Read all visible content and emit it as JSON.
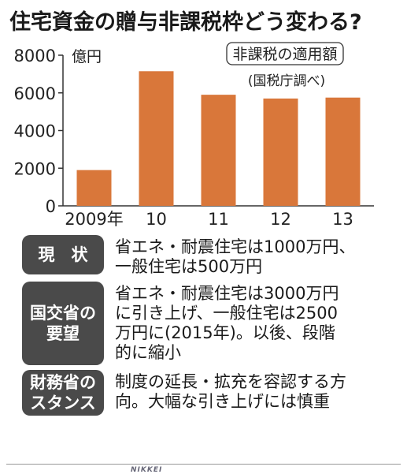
{
  "title": "住宅資金の贈与非課税枠どう変わる?",
  "chart_data": {
    "type": "bar",
    "categories": [
      "2009年",
      "10",
      "11",
      "12",
      "13"
    ],
    "values": [
      1900,
      7150,
      5900,
      5700,
      5750
    ],
    "yunit": "億円",
    "yticks": [
      0,
      2000,
      4000,
      6000,
      8000
    ],
    "ylim": [
      0,
      8000
    ],
    "legend_box": "非課税の適用額",
    "source": "(国税庁調べ)",
    "bar_color": "#d9773a",
    "grid": false
  },
  "rows": [
    {
      "label": "現　状",
      "text": "省エネ・耐震住宅は1000万円、\n一般住宅は500万円"
    },
    {
      "label": "国交省の\n要望",
      "text": "省エネ・耐震住宅は3000万円\nに引き上げ、一般住宅は2500\n万円に(2015年)。以後、段階\n的に縮小"
    },
    {
      "label": "財務省の\nスタンス",
      "text": "制度の延長・拡充を容認する方\n向。大幅な引き上げには慎重"
    }
  ],
  "footer": {
    "logo": "NIKKEI"
  },
  "colors": {
    "label_bg": "#4a4a4a",
    "bar": "#d9773a"
  }
}
